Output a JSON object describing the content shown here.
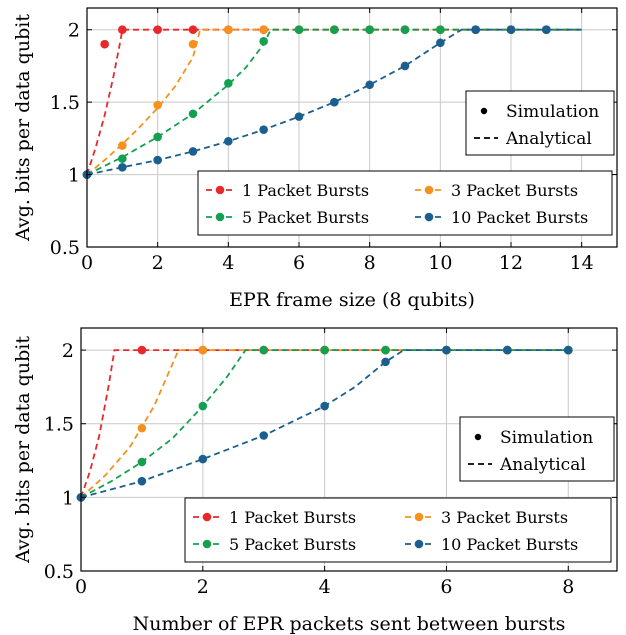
{
  "chart_data": [
    {
      "type": "line",
      "title": "",
      "xlabel": "EPR frame size (8 qubits)",
      "ylabel": "Avg. bits per data qubit",
      "xlim": [
        0,
        15
      ],
      "ylim": [
        0.5,
        2.15
      ],
      "xticks": [
        "0",
        "2",
        "4",
        "6",
        "8",
        "10",
        "12",
        "14"
      ],
      "yticks": [
        "0.5",
        "1",
        "1.5",
        "2"
      ],
      "grid": true,
      "legend_style": {
        "title": "",
        "entries": [
          "Simulation",
          "Analytical"
        ]
      },
      "legend_series_position": "bottom-right",
      "legend_style_position": "right",
      "series": [
        {
          "name": "1 Packet Bursts",
          "color": "#e8282a",
          "sim_x": [
            0,
            0.5,
            1,
            2,
            3,
            4,
            5,
            6,
            7,
            8,
            9,
            10,
            11,
            12,
            13
          ],
          "sim_y": [
            1.0,
            1.9,
            2.0,
            2.0,
            2.0,
            2.0,
            2.0,
            2.0,
            2.0,
            2.0,
            2.0,
            2.0,
            2.0,
            2.0,
            2.0
          ],
          "ana_x": [
            0,
            0.25,
            0.5,
            0.75,
            0.95,
            1.0,
            14
          ],
          "ana_y": [
            1.0,
            1.19,
            1.41,
            1.68,
            1.93,
            2.0,
            2.0
          ]
        },
        {
          "name": "3 Packet Bursts",
          "color": "#f5921e",
          "sim_x": [
            0,
            1,
            2,
            3,
            4,
            5,
            6,
            7,
            8,
            9,
            10,
            11,
            12,
            13
          ],
          "sim_y": [
            1.0,
            1.2,
            1.48,
            1.9,
            2.0,
            2.0,
            2.0,
            2.0,
            2.0,
            2.0,
            2.0,
            2.0,
            2.0,
            2.0
          ],
          "ana_x": [
            0,
            0.5,
            1,
            1.5,
            2,
            2.5,
            3,
            3.2,
            14
          ],
          "ana_y": [
            1.0,
            1.1,
            1.21,
            1.33,
            1.46,
            1.61,
            1.81,
            2.0,
            2.0
          ]
        },
        {
          "name": "5 Packet Bursts",
          "color": "#14a050",
          "sim_x": [
            0,
            1,
            2,
            3,
            4,
            5,
            6,
            7,
            8,
            9,
            10,
            11,
            12,
            13
          ],
          "sim_y": [
            1.0,
            1.11,
            1.26,
            1.42,
            1.63,
            1.92,
            2.0,
            2.0,
            2.0,
            2.0,
            2.0,
            2.0,
            2.0,
            2.0
          ],
          "ana_x": [
            0,
            1,
            2,
            3,
            4,
            4.5,
            5,
            5.2,
            14
          ],
          "ana_y": [
            1.0,
            1.12,
            1.26,
            1.42,
            1.62,
            1.74,
            1.9,
            2.0,
            2.0
          ]
        },
        {
          "name": "10 Packet Bursts",
          "color": "#1a5f8e",
          "sim_x": [
            0,
            1,
            2,
            3,
            4,
            5,
            6,
            7,
            8,
            9,
            10,
            11,
            12,
            13
          ],
          "sim_y": [
            1.0,
            1.05,
            1.1,
            1.16,
            1.23,
            1.31,
            1.4,
            1.5,
            1.62,
            1.75,
            1.91,
            2.0,
            2.0,
            2.0
          ],
          "ana_x": [
            0,
            1,
            2,
            3,
            4,
            5,
            6,
            7,
            8,
            9,
            10,
            10.6,
            14
          ],
          "ana_y": [
            1.0,
            1.05,
            1.1,
            1.16,
            1.23,
            1.31,
            1.4,
            1.5,
            1.62,
            1.75,
            1.91,
            2.0,
            2.0
          ]
        }
      ]
    },
    {
      "type": "line",
      "title": "",
      "xlabel": "Number of EPR packets sent between bursts",
      "ylabel": "Avg. bits per data qubit",
      "xlim": [
        0,
        8.8
      ],
      "ylim": [
        0.5,
        2.15
      ],
      "xticks": [
        "0",
        "2",
        "4",
        "6",
        "8"
      ],
      "yticks": [
        "0.5",
        "1",
        "1.5",
        "2"
      ],
      "grid": true,
      "legend_style": {
        "title": "",
        "entries": [
          "Simulation",
          "Analytical"
        ]
      },
      "legend_series_position": "bottom-right",
      "legend_style_position": "right",
      "series": [
        {
          "name": "1 Packet Bursts",
          "color": "#e8282a",
          "sim_x": [
            0,
            1,
            2,
            3,
            4,
            5,
            6,
            7,
            8
          ],
          "sim_y": [
            1.0,
            2.0,
            2.0,
            2.0,
            2.0,
            2.0,
            2.0,
            2.0,
            2.0
          ],
          "ana_x": [
            0,
            0.15,
            0.3,
            0.45,
            0.55,
            8
          ],
          "ana_y": [
            1.0,
            1.18,
            1.42,
            1.75,
            2.0,
            2.0
          ]
        },
        {
          "name": "3 Packet Bursts",
          "color": "#f5921e",
          "sim_x": [
            0,
            1,
            2,
            3,
            4,
            5,
            6,
            7,
            8
          ],
          "sim_y": [
            1.0,
            1.47,
            2.0,
            2.0,
            2.0,
            2.0,
            2.0,
            2.0,
            2.0
          ],
          "ana_x": [
            0,
            0.4,
            0.8,
            1.2,
            1.6,
            8
          ],
          "ana_y": [
            1.0,
            1.15,
            1.34,
            1.62,
            2.0,
            2.0
          ]
        },
        {
          "name": "5 Packet Bursts",
          "color": "#14a050",
          "sim_x": [
            0,
            1,
            2,
            3,
            4,
            5,
            6,
            7,
            8
          ],
          "sim_y": [
            1.0,
            1.24,
            1.62,
            2.0,
            2.0,
            2.0,
            2.0,
            2.0,
            2.0
          ],
          "ana_x": [
            0,
            0.5,
            1,
            1.5,
            2,
            2.4,
            2.7,
            8
          ],
          "ana_y": [
            1.0,
            1.11,
            1.24,
            1.4,
            1.62,
            1.82,
            2.0,
            2.0
          ]
        },
        {
          "name": "10 Packet Bursts",
          "color": "#1a5f8e",
          "sim_x": [
            0,
            1,
            2,
            3,
            4,
            5,
            6,
            7,
            8
          ],
          "sim_y": [
            1.0,
            1.11,
            1.26,
            1.42,
            1.62,
            1.92,
            2.0,
            2.0,
            2.0
          ],
          "ana_x": [
            0,
            1,
            2,
            3,
            4,
            4.5,
            5,
            5.3,
            8
          ],
          "ana_y": [
            1.0,
            1.11,
            1.26,
            1.42,
            1.62,
            1.75,
            1.92,
            2.0,
            2.0
          ]
        }
      ]
    }
  ]
}
